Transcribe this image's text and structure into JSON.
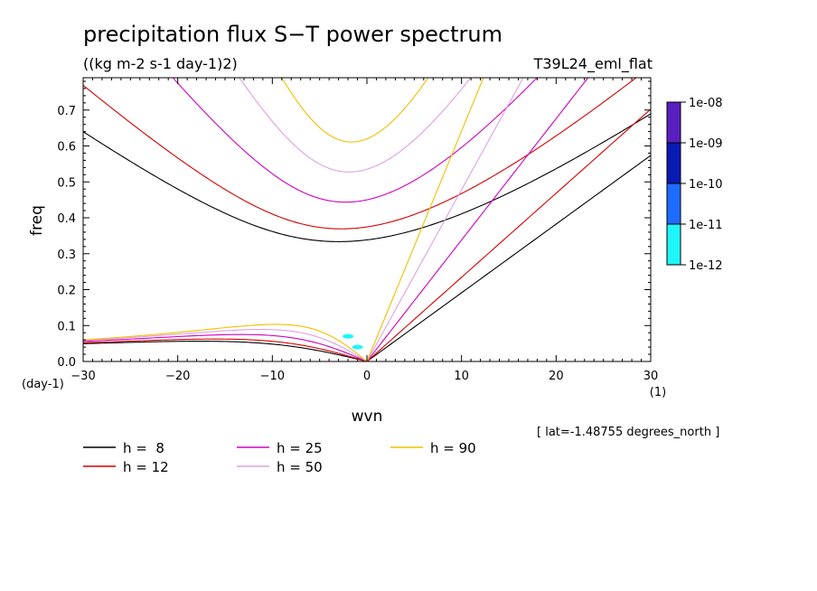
{
  "chart_data": {
    "type": "line",
    "title": "precipitation flux S−T power spectrum",
    "units": "((kg m-2 s-1 day-1)2)",
    "experiment": "T39L24_eml_flat",
    "xlabel": "wvn",
    "xunit": "(1)",
    "ylabel": "freq",
    "yunit": "(day-1)",
    "xlim": [
      -30,
      30
    ],
    "ylim": [
      0,
      0.79
    ],
    "xticks": [
      -30,
      -20,
      -10,
      0,
      10,
      20,
      30
    ],
    "xtick_labels": [
      "−30",
      "−20",
      "−10",
      "0",
      "10",
      "20",
      "30"
    ],
    "yticks": [
      0,
      0.1,
      0.2,
      0.3,
      0.4,
      0.5,
      0.6,
      0.7
    ],
    "ytick_labels": [
      "0.0",
      "0.1",
      "0.2",
      "0.3",
      "0.4",
      "0.5",
      "0.6",
      "0.7"
    ],
    "annotation": "[ lat=-1.48755 degrees_north ]",
    "colorbar": {
      "labels": [
        "1e-08",
        "1e-09",
        "1e-10",
        "1e-11",
        "1e-12"
      ],
      "colors": [
        "#5a1fc0",
        "#0a1ab4",
        "#1e6bff",
        "#1ff6fa"
      ]
    },
    "series": [
      {
        "name": "h =  8",
        "h": 8,
        "color": "#000000"
      },
      {
        "name": "h = 12",
        "h": 12,
        "color": "#d40000"
      },
      {
        "name": "h = 25",
        "h": 25,
        "color": "#d000c0"
      },
      {
        "name": "h = 50",
        "h": 50,
        "color": "#e0a0e0"
      },
      {
        "name": "h = 90",
        "h": 90,
        "color": "#f0c000"
      }
    ],
    "spectral_blobs": [
      {
        "x": -2.0,
        "y": 0.07,
        "color": "#1ff6fa"
      },
      {
        "x": -1.0,
        "y": 0.04,
        "color": "#1ff6fa"
      }
    ]
  }
}
